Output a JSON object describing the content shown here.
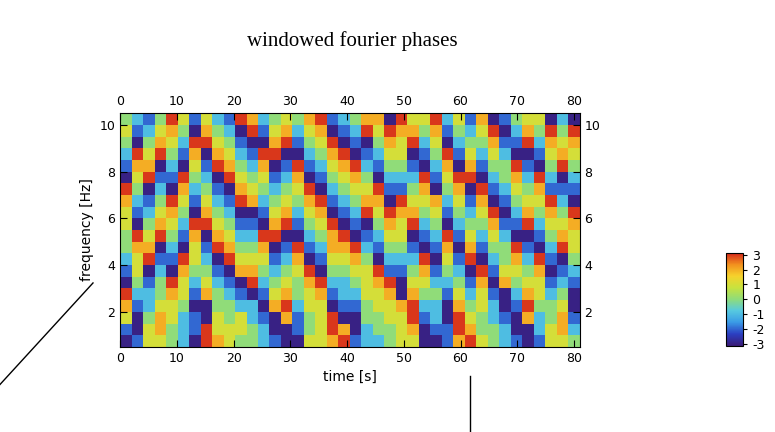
{
  "chart_data": {
    "type": "heatmap",
    "title": "windowed fourier phases",
    "x_label": "time [s]",
    "y_label": "frequency [Hz]",
    "xlim": [
      0,
      81
    ],
    "ylim": [
      0.5,
      10.5
    ],
    "xticks": [
      0,
      10,
      20,
      30,
      40,
      50,
      60,
      70,
      80
    ],
    "yticks": [
      2,
      4,
      6,
      8,
      10
    ],
    "colorbar": {
      "range": [
        -3.14,
        3.14
      ],
      "ticks": [
        -3,
        -2,
        -1,
        0,
        1,
        2,
        3
      ]
    },
    "cells": [
      [
        -3,
        -2,
        1,
        1,
        0,
        -1,
        -3,
        3,
        2,
        1,
        0,
        0,
        -1,
        -2,
        -3,
        -3,
        1,
        1,
        2,
        3,
        -2,
        -1,
        -1,
        0,
        1,
        1,
        -3,
        -3,
        -2,
        2,
        3,
        1,
        0,
        -1,
        -2,
        -3,
        -2,
        1,
        1,
        0
      ],
      [
        -2,
        -3,
        1,
        2,
        0,
        -1,
        -2,
        3,
        1,
        1,
        1,
        0,
        -1,
        -3,
        -3,
        -2,
        0,
        1,
        3,
        2,
        -3,
        -1,
        0,
        0,
        1,
        2,
        -3,
        -2,
        -2,
        3,
        2,
        0,
        0,
        -1,
        -3,
        -3,
        -1,
        1,
        2,
        -1
      ],
      [
        1,
        -3,
        0,
        2,
        1,
        -1,
        -2,
        -3,
        1,
        0,
        1,
        -1,
        -2,
        -3,
        2,
        -2,
        0,
        1,
        3,
        -3,
        -3,
        0,
        0,
        1,
        1,
        3,
        -2,
        -1,
        -3,
        3,
        1,
        0,
        -1,
        -2,
        -3,
        2,
        -1,
        0,
        2,
        -2
      ],
      [
        2,
        -2,
        -1,
        1,
        1,
        0,
        -3,
        -3,
        0,
        0,
        -1,
        -1,
        -3,
        2,
        3,
        -1,
        1,
        1,
        -3,
        -2,
        -2,
        0,
        1,
        1,
        2,
        3,
        -1,
        -1,
        -3,
        2,
        0,
        1,
        -1,
        -3,
        -2,
        3,
        0,
        0,
        1,
        -3
      ],
      [
        3,
        -1,
        -1,
        0,
        2,
        1,
        -2,
        2,
        0,
        -1,
        -2,
        -3,
        -2,
        1,
        2,
        0,
        1,
        2,
        -2,
        -1,
        -1,
        1,
        1,
        2,
        -3,
        2,
        0,
        0,
        -2,
        1,
        -1,
        1,
        -2,
        -3,
        -1,
        2,
        1,
        -1,
        0,
        -3
      ],
      [
        -3,
        0,
        -2,
        0,
        3,
        1,
        -1,
        1,
        -1,
        -2,
        -3,
        3,
        -1,
        0,
        1,
        0,
        2,
        3,
        -1,
        -1,
        0,
        1,
        2,
        3,
        -3,
        1,
        1,
        -1,
        -1,
        0,
        -2,
        2,
        -3,
        2,
        0,
        1,
        1,
        -2,
        -1,
        -2
      ],
      [
        -2,
        1,
        -3,
        -1,
        -3,
        2,
        0,
        0,
        -2,
        -3,
        2,
        2,
        0,
        -1,
        0,
        1,
        3,
        -3,
        0,
        0,
        1,
        1,
        3,
        -2,
        -2,
        0,
        2,
        -2,
        0,
        -1,
        -3,
        3,
        -2,
        1,
        1,
        0,
        2,
        -3,
        -2,
        -1
      ],
      [
        -1,
        1,
        3,
        -2,
        -2,
        3,
        1,
        -1,
        -3,
        3,
        1,
        1,
        1,
        -2,
        -1,
        2,
        -3,
        -2,
        1,
        1,
        2,
        0,
        -3,
        -1,
        -1,
        -1,
        3,
        -3,
        1,
        -2,
        3,
        -3,
        -1,
        0,
        2,
        -1,
        3,
        -2,
        -3,
        0
      ],
      [
        0,
        2,
        2,
        -3,
        -1,
        -3,
        1,
        -2,
        3,
        2,
        0,
        0,
        2,
        -3,
        -2,
        3,
        -2,
        -1,
        2,
        2,
        3,
        -1,
        -2,
        0,
        0,
        -2,
        -3,
        -2,
        2,
        -3,
        2,
        -2,
        0,
        0,
        3,
        -2,
        -3,
        -1,
        3,
        1
      ],
      [
        0,
        3,
        1,
        3,
        0,
        -2,
        2,
        -3,
        2,
        1,
        -1,
        -1,
        3,
        3,
        -3,
        -3,
        -1,
        0,
        2,
        3,
        -3,
        -2,
        -1,
        1,
        1,
        -3,
        -2,
        -1,
        3,
        -2,
        1,
        -1,
        1,
        -1,
        -3,
        -3,
        -2,
        0,
        2,
        1
      ],
      [
        1,
        -3,
        0,
        2,
        1,
        -1,
        3,
        3,
        1,
        0,
        -2,
        -2,
        -3,
        2,
        3,
        -2,
        0,
        1,
        3,
        -3,
        -2,
        -3,
        0,
        2,
        1,
        3,
        -1,
        0,
        -3,
        -1,
        0,
        0,
        2,
        -2,
        -2,
        3,
        -1,
        1,
        1,
        2
      ],
      [
        1,
        -2,
        -1,
        1,
        2,
        0,
        -3,
        2,
        0,
        -1,
        -3,
        -3,
        -2,
        1,
        2,
        -1,
        1,
        2,
        -3,
        -2,
        -1,
        3,
        1,
        3,
        2,
        2,
        0,
        1,
        -2,
        0,
        -1,
        1,
        3,
        -3,
        -1,
        2,
        0,
        2,
        0,
        3
      ],
      [
        2,
        -1,
        -2,
        0,
        3,
        1,
        -2,
        1,
        -1,
        -2,
        3,
        2,
        -1,
        0,
        1,
        0,
        2,
        3,
        -2,
        -1,
        0,
        2,
        2,
        -3,
        3,
        1,
        1,
        2,
        -1,
        1,
        -2,
        2,
        -3,
        -2,
        0,
        1,
        1,
        3,
        -1,
        -3
      ],
      [
        3,
        0,
        -3,
        -1,
        -3,
        2,
        -1,
        0,
        -2,
        -3,
        2,
        1,
        0,
        -1,
        0,
        1,
        3,
        -3,
        -1,
        0,
        1,
        1,
        3,
        -2,
        -2,
        0,
        2,
        -3,
        0,
        2,
        -3,
        3,
        -2,
        -1,
        1,
        0,
        2,
        -2,
        -2,
        -2
      ],
      [
        -3,
        1,
        3,
        -2,
        -2,
        3,
        0,
        -1,
        -3,
        3,
        1,
        0,
        1,
        -2,
        -1,
        2,
        -3,
        -2,
        0,
        1,
        2,
        0,
        -3,
        -1,
        -1,
        -1,
        3,
        -2,
        1,
        3,
        3,
        -3,
        -1,
        0,
        2,
        -1,
        3,
        -1,
        -3,
        -1
      ],
      [
        -2,
        2,
        2,
        -3,
        -1,
        -3,
        1,
        -2,
        3,
        2,
        0,
        -1,
        2,
        -3,
        -2,
        3,
        -2,
        -1,
        1,
        2,
        3,
        -1,
        -2,
        0,
        0,
        -2,
        -3,
        -1,
        2,
        -3,
        2,
        -2,
        0,
        0,
        3,
        -2,
        -3,
        0,
        3,
        0
      ],
      [
        -1,
        3,
        1,
        3,
        0,
        -2,
        2,
        -3,
        2,
        1,
        -1,
        -2,
        3,
        3,
        -3,
        -3,
        -1,
        0,
        2,
        3,
        -3,
        -2,
        -1,
        1,
        1,
        -3,
        -2,
        0,
        3,
        -2,
        1,
        -1,
        1,
        -1,
        -3,
        -3,
        -2,
        1,
        2,
        1
      ],
      [
        0,
        -3,
        0,
        2,
        1,
        -1,
        3,
        3,
        1,
        0,
        -2,
        -3,
        -3,
        2,
        3,
        -2,
        0,
        1,
        3,
        -3,
        -2,
        -3,
        0,
        2,
        1,
        3,
        -1,
        1,
        -3,
        -1,
        0,
        0,
        2,
        -2,
        -2,
        3,
        -1,
        2,
        1,
        2
      ],
      [
        1,
        -2,
        -1,
        1,
        2,
        0,
        -3,
        2,
        0,
        -1,
        -3,
        3,
        -2,
        1,
        2,
        -1,
        1,
        2,
        -3,
        -2,
        -1,
        3,
        1,
        3,
        2,
        2,
        0,
        2,
        -2,
        0,
        -1,
        1,
        3,
        -3,
        -1,
        2,
        0,
        3,
        0,
        3
      ],
      [
        0,
        -1,
        -2,
        0,
        3,
        1,
        -2,
        1,
        -1,
        -2,
        3,
        2,
        -1,
        0,
        1,
        0,
        2,
        3,
        -2,
        -1,
        0,
        2,
        2,
        -3,
        3,
        1,
        1,
        3,
        -1,
        1,
        -2,
        2,
        -3,
        -2,
        0,
        1,
        1,
        -3,
        -1,
        -3
      ]
    ]
  }
}
